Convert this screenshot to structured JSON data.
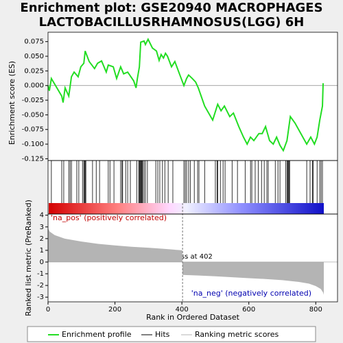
{
  "chart_data": {
    "type": "gsea",
    "title": "Enrichment plot: GSE20940 MACROPHAGES",
    "subtitle": "LACTOBACILLUSRHAMNOSUS(LGG) 6H",
    "y_label": "Enrichment score (ES)",
    "y2_label": "Ranked list metric (PreRanked)",
    "x_label": "Rank in Ordered Dataset",
    "pos_label": "'na_pos' (positively correlated)",
    "neg_label": "'na_neg' (negatively correlated)",
    "zero_cross_label": "Zero cross at 402",
    "zero_cross": 402,
    "xlim": [
      0,
      865
    ],
    "xticks": [
      0,
      200,
      400,
      600,
      800
    ],
    "ylim": [
      -0.128,
      0.091
    ],
    "yticks": [
      {
        "value": 0.075,
        "label": "0.075"
      },
      {
        "value": 0.05,
        "label": "0.050"
      },
      0.025,
      {
        "value": 0,
        "label": "0.000"
      },
      -0.025,
      {
        "value": -0.05,
        "label": "-0.050"
      },
      -0.075,
      {
        "value": -0.1,
        "label": "-0.100"
      },
      -0.125
    ],
    "y2lim": [
      -3.4,
      4.1
    ],
    "y2ticks": [
      4,
      3,
      2,
      1,
      0,
      -1,
      -2,
      -3
    ],
    "series": [
      {
        "name": "Enrichment profile",
        "color": "#22dd22",
        "x": [
          0,
          4,
          10,
          41,
          45,
          51,
          62,
          70,
          78,
          90,
          98,
          107,
          111,
          123,
          139,
          148,
          160,
          174,
          180,
          195,
          205,
          217,
          226,
          238,
          256,
          263,
          267,
          273,
          277,
          287,
          291,
          299,
          312,
          324,
          332,
          338,
          345,
          351,
          357,
          369,
          379,
          394,
          406,
          414,
          420,
          431,
          441,
          449,
          468,
          492,
          507,
          517,
          527,
          543,
          554,
          570,
          584,
          595,
          605,
          615,
          630,
          640,
          650,
          662,
          673,
          683,
          693,
          703,
          714,
          724,
          738,
          773,
          785,
          796,
          804,
          812,
          820,
          822
        ],
        "values": [
          0,
          -0.009,
          0.012,
          -0.018,
          -0.029,
          -0.004,
          -0.018,
          0.015,
          0.023,
          0.015,
          0.032,
          0.038,
          0.059,
          0.041,
          0.029,
          0.038,
          0.042,
          0.023,
          0.035,
          0.032,
          0.012,
          0.032,
          0.02,
          0.023,
          0.008,
          -0.004,
          0.012,
          0.032,
          0.074,
          0.076,
          0.07,
          0.079,
          0.064,
          0.059,
          0.043,
          0.053,
          0.047,
          0.055,
          0.05,
          0.032,
          0.041,
          0.018,
          0.0,
          0.012,
          0.018,
          0.012,
          0.006,
          -0.004,
          -0.035,
          -0.059,
          -0.032,
          -0.043,
          -0.035,
          -0.053,
          -0.047,
          -0.07,
          -0.088,
          -0.1,
          -0.088,
          -0.094,
          -0.082,
          -0.082,
          -0.07,
          -0.094,
          -0.1,
          -0.088,
          -0.102,
          -0.111,
          -0.094,
          -0.053,
          -0.064,
          -0.1,
          -0.088,
          -0.1,
          -0.088,
          -0.059,
          -0.035,
          0.004
        ]
      },
      {
        "name": "Hits",
        "color": "#000000",
        "hits": [
          10,
          41,
          47,
          62,
          66,
          70,
          86,
          92,
          103,
          107,
          109,
          111,
          113,
          133,
          144,
          154,
          180,
          185,
          197,
          217,
          221,
          223,
          232,
          238,
          246,
          265,
          271,
          273,
          275,
          277,
          279,
          281,
          283,
          287,
          291,
          297,
          322,
          328,
          334,
          342,
          349,
          359,
          373,
          406,
          410,
          414,
          420,
          425,
          437,
          447,
          451,
          468,
          500,
          505,
          507,
          515,
          523,
          529,
          550,
          566,
          589,
          605,
          609,
          619,
          628,
          638,
          646,
          654,
          658,
          679,
          687,
          693,
          710,
          714,
          716,
          718,
          720,
          722,
          773,
          783,
          790,
          792,
          804,
          812,
          816,
          820
        ]
      },
      {
        "name": "Ranking metric scores",
        "color": "#b4b4b4",
        "axis": "y2",
        "x": [
          0,
          5,
          20,
          50,
          100,
          150,
          200,
          250,
          300,
          350,
          401,
          402,
          450,
          500,
          550,
          600,
          650,
          700,
          750,
          780,
          800,
          815,
          822,
          824
        ],
        "values": [
          2.9,
          2.6,
          2.3,
          2.0,
          1.75,
          1.55,
          1.42,
          1.3,
          1.22,
          1.12,
          1.0,
          -1.1,
          -1.15,
          -1.22,
          -1.3,
          -1.38,
          -1.45,
          -1.55,
          -1.7,
          -1.85,
          -2.05,
          -2.3,
          -2.6,
          -2.8
        ]
      }
    ]
  }
}
